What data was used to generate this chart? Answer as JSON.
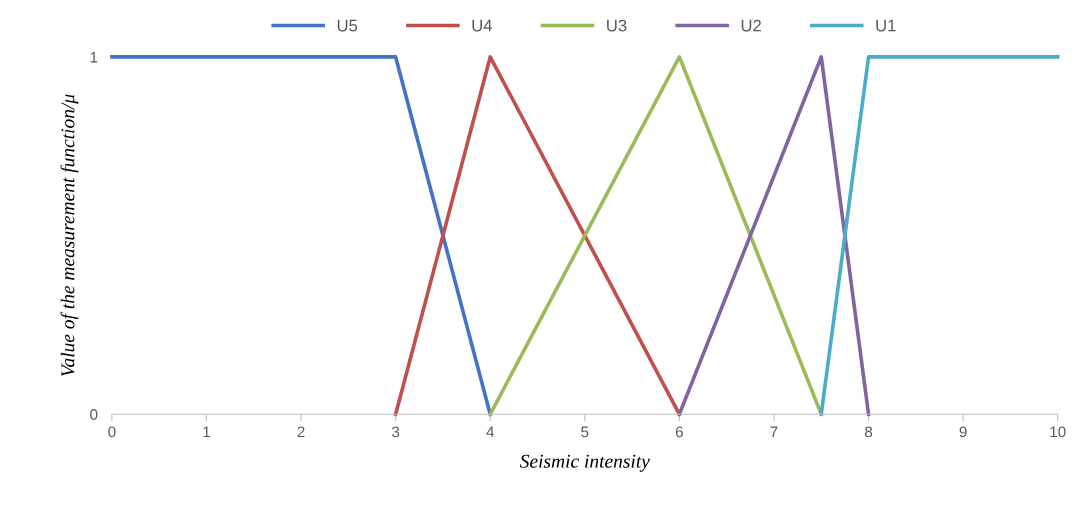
{
  "chart_data": {
    "type": "line",
    "xlabel": "Seismic intensity",
    "ylabel": "Value of the measurement function/μ",
    "xlim": [
      0,
      10
    ],
    "xticks": [
      0,
      1,
      2,
      3,
      4,
      5,
      6,
      7,
      8,
      9,
      10
    ],
    "ylim": [
      0,
      1
    ],
    "yticks": [
      0,
      1
    ],
    "grid": false,
    "legend": "top",
    "marker": "none",
    "line_style": "solid",
    "series": [
      {
        "name": "U5",
        "color": "#4472c4",
        "x": [
          0,
          3,
          4
        ],
        "values": [
          1,
          1,
          0
        ]
      },
      {
        "name": "U4",
        "color": "#c0504d",
        "x": [
          3,
          4,
          6
        ],
        "values": [
          0,
          1,
          0
        ]
      },
      {
        "name": "U3",
        "color": "#9bbb59",
        "x": [
          4,
          6,
          7.5
        ],
        "values": [
          0,
          1,
          0
        ]
      },
      {
        "name": "U2",
        "color": "#8064a2",
        "x": [
          6,
          7.5,
          8
        ],
        "values": [
          0,
          1,
          0
        ]
      },
      {
        "name": "U1",
        "color": "#4bacc6",
        "x": [
          7.5,
          8,
          10
        ],
        "values": [
          0,
          1,
          1
        ]
      }
    ]
  }
}
